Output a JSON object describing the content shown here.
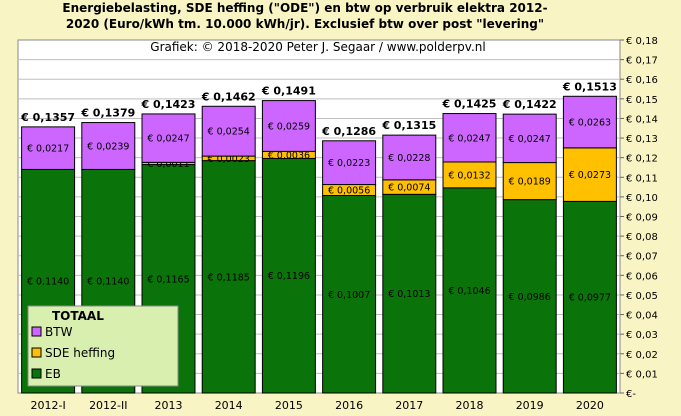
{
  "title_line1": "Energiebelasting, SDE heffing (\"ODE\") en btw op verbruik elektra 2012-",
  "title_line2": "2020 (Euro/kWh tm. 10.000 kWh/jr). Exclusief btw over post \"levering\"",
  "subtitle": "Grafiek: © 2018-2020 Peter J. Segaar / www.polderpv.nl",
  "chart_data": {
    "type": "bar",
    "stacked": true,
    "categories": [
      "2012-I",
      "2012-II",
      "2013",
      "2014",
      "2015",
      "2016",
      "2017",
      "2018",
      "2019",
      "2020"
    ],
    "series": [
      {
        "name": "EB",
        "color": "#0a730a",
        "values": [
          0.114,
          0.114,
          0.1165,
          0.1185,
          0.1196,
          0.1007,
          0.1013,
          0.1046,
          0.0986,
          0.0977
        ],
        "labels": [
          "€ 0,1140",
          "€ 0,1140",
          "€ 0,1165",
          "€ 0,1185",
          "€ 0,1196",
          "€ 0,1007",
          "€ 0,1013",
          "€ 0,1046",
          "€ 0,0986",
          "€ 0,0977"
        ]
      },
      {
        "name": "SDE heffing",
        "color": "#ffc000",
        "values": [
          0,
          0,
          0.0011,
          0.0023,
          0.0036,
          0.0056,
          0.0074,
          0.0132,
          0.0189,
          0.0273
        ],
        "labels": [
          "",
          "",
          "€ 0,0011",
          "€ 0,0023",
          "€ 0,0036",
          "€ 0,0056",
          "€ 0,0074",
          "€ 0,0132",
          "€ 0,0189",
          "€ 0,0273"
        ]
      },
      {
        "name": "BTW",
        "color": "#cc66ff",
        "values": [
          0.0217,
          0.0239,
          0.0247,
          0.0254,
          0.0259,
          0.0223,
          0.0228,
          0.0247,
          0.0247,
          0.0263
        ],
        "labels": [
          "€ 0,0217",
          "€ 0,0239",
          "€ 0,0247",
          "€ 0,0254",
          "€ 0,0259",
          "€ 0,0223",
          "€ 0,0228",
          "€ 0,0247",
          "€ 0,0247",
          "€ 0,0263"
        ]
      }
    ],
    "totals": [
      0.1357,
      0.1379,
      0.1423,
      0.1462,
      0.1491,
      0.1286,
      0.1315,
      0.1425,
      0.1422,
      0.1513
    ],
    "total_labels": [
      "€ 0,1357",
      "€ 0,1379",
      "€ 0,1423",
      "€ 0,1462",
      "€ 0,1491",
      "€ 0,1286",
      "€ 0,1315",
      "€ 0,1425",
      "€ 0,1422",
      "€ 0,1513"
    ],
    "ylim": [
      0,
      0.18
    ],
    "yticks": [
      "€-",
      "€ 0,01",
      "€ 0,02",
      "€ 0,03",
      "€ 0,04",
      "€ 0,05",
      "€ 0,06",
      "€ 0,07",
      "€ 0,08",
      "€ 0,09",
      "€ 0,10",
      "€ 0,11",
      "€ 0,12",
      "€ 0,13",
      "€ 0,14",
      "€ 0,15",
      "€ 0,16",
      "€ 0,17",
      "€ 0,18"
    ],
    "legend": {
      "title": "TOTAAL",
      "position": "bottom-left",
      "entries": [
        "BTW",
        "SDE heffing",
        "EB"
      ]
    },
    "grid": true
  }
}
